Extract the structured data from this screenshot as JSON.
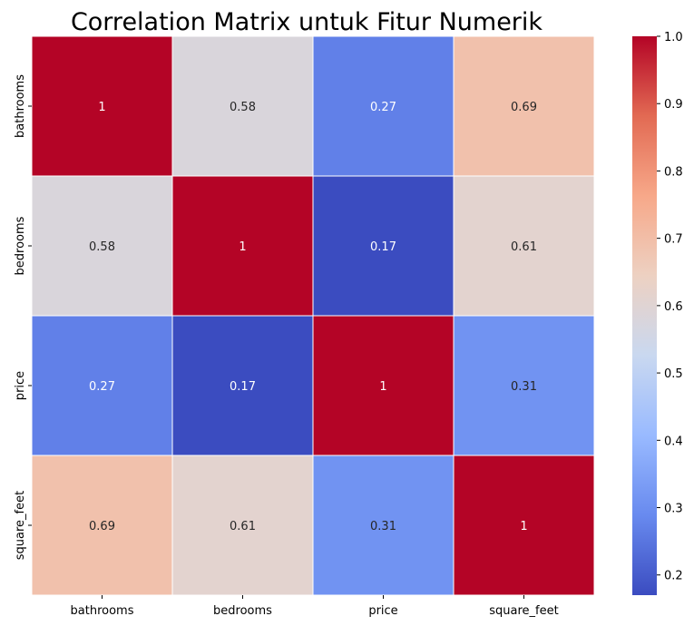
{
  "chart_data": {
    "type": "heatmap",
    "title": "Correlation Matrix untuk Fitur Numerik",
    "xlabel": "",
    "ylabel": "",
    "x_labels": [
      "bathrooms",
      "bedrooms",
      "price",
      "square_feet"
    ],
    "y_labels": [
      "bathrooms",
      "bedrooms",
      "price",
      "square_feet"
    ],
    "values": [
      [
        1.0,
        0.58,
        0.27,
        0.69
      ],
      [
        0.58,
        1.0,
        0.17,
        0.61
      ],
      [
        0.27,
        0.17,
        1.0,
        0.31
      ],
      [
        0.69,
        0.61,
        0.31,
        1.0
      ]
    ],
    "cell_labels": [
      [
        "1",
        "0.58",
        "0.27",
        "0.69"
      ],
      [
        "0.58",
        "1",
        "0.17",
        "0.61"
      ],
      [
        "0.27",
        "0.17",
        "1",
        "0.31"
      ],
      [
        "0.69",
        "0.61",
        "0.31",
        "1"
      ]
    ],
    "colormap": "coolwarm",
    "vmin": 0.17,
    "vmax": 1.0,
    "colorbar_ticks": [
      0.2,
      0.3,
      0.4,
      0.5,
      0.6,
      0.7,
      0.8,
      0.9,
      1.0
    ],
    "colorbar_tick_labels": [
      "0.2",
      "0.3",
      "0.4",
      "0.5",
      "0.6",
      "0.7",
      "0.8",
      "0.9",
      "1.0"
    ],
    "grid": false,
    "cell_border_color": "#ffffff",
    "colormap_stops": [
      "#3b4cc0",
      "#688aef",
      "#99baff",
      "#c9d8f0",
      "#edd1c2",
      "#f7a889",
      "#e26a53",
      "#b40426"
    ]
  }
}
